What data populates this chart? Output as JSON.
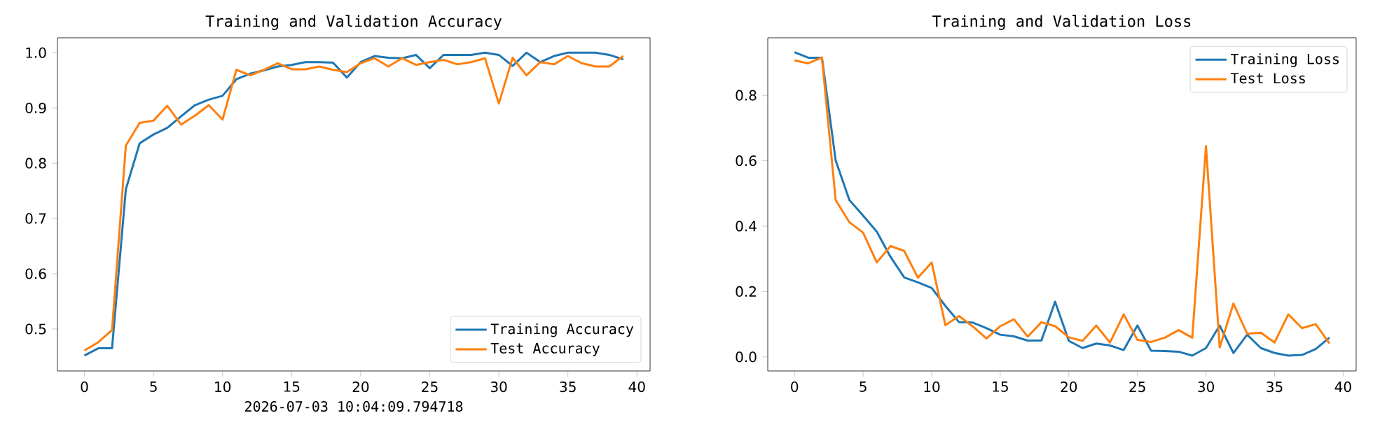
{
  "chart_data": [
    {
      "type": "line",
      "title": "Training and Validation Accuracy",
      "x": [
        0,
        1,
        2,
        3,
        4,
        5,
        6,
        7,
        8,
        9,
        10,
        11,
        12,
        13,
        14,
        15,
        16,
        17,
        18,
        19,
        20,
        21,
        22,
        23,
        24,
        25,
        26,
        27,
        28,
        29,
        30,
        31,
        32,
        33,
        34,
        35,
        36,
        37,
        38,
        39
      ],
      "series": [
        {
          "name": "Training Accuracy",
          "color": "#1f77b4",
          "values": [
            0.452,
            0.465,
            0.465,
            0.753,
            0.836,
            0.852,
            0.864,
            0.885,
            0.905,
            0.915,
            0.922,
            0.952,
            0.962,
            0.968,
            0.975,
            0.978,
            0.983,
            0.983,
            0.982,
            0.955,
            0.983,
            0.994,
            0.991,
            0.99,
            0.996,
            0.972,
            0.996,
            0.996,
            0.996,
            1.0,
            0.996,
            0.976,
            1.0,
            0.983,
            0.994,
            1.0,
            1.0,
            1.0,
            0.996,
            0.988
          ]
        },
        {
          "name": "Test Accuracy",
          "color": "#ff7f0e",
          "values": [
            0.461,
            0.476,
            0.498,
            0.832,
            0.873,
            0.877,
            0.904,
            0.87,
            0.886,
            0.905,
            0.879,
            0.969,
            0.959,
            0.969,
            0.981,
            0.97,
            0.97,
            0.975,
            0.969,
            0.965,
            0.981,
            0.99,
            0.975,
            0.99,
            0.978,
            0.983,
            0.987,
            0.979,
            0.983,
            0.99,
            0.908,
            0.991,
            0.959,
            0.983,
            0.979,
            0.994,
            0.981,
            0.975,
            0.975,
            0.994
          ]
        }
      ],
      "xlim": [
        -1.95,
        40.95
      ],
      "xticks": [
        0,
        5,
        10,
        15,
        20,
        25,
        30,
        35,
        40
      ],
      "ylim": [
        0.424,
        1.027
      ],
      "yticks": [
        {
          "value": 0.5,
          "label": "0.5"
        },
        {
          "value": 0.6,
          "label": "0.6"
        },
        {
          "value": 0.7,
          "label": "0.7"
        },
        {
          "value": 0.8,
          "label": "0.8"
        },
        {
          "value": 0.9,
          "label": "0.9"
        },
        {
          "value": 1.0,
          "label": "1.0"
        }
      ],
      "legend": "bottom right",
      "grid": false,
      "marker": "none",
      "line_style": "solid",
      "annotations": [
        "2026-07-03 10:04:09.794718"
      ]
    },
    {
      "type": "line",
      "title": "Training and Validation Loss",
      "x": [
        0,
        1,
        2,
        3,
        4,
        5,
        6,
        7,
        8,
        9,
        10,
        11,
        12,
        13,
        14,
        15,
        16,
        17,
        18,
        19,
        20,
        21,
        22,
        23,
        24,
        25,
        26,
        27,
        28,
        29,
        30,
        31,
        32,
        33,
        34,
        35,
        36,
        37,
        38,
        39
      ],
      "series": [
        {
          "name": "Training Loss",
          "color": "#1f77b4",
          "values": [
            0.932,
            0.915,
            0.915,
            0.601,
            0.48,
            0.432,
            0.383,
            0.306,
            0.243,
            0.228,
            0.211,
            0.156,
            0.106,
            0.105,
            0.088,
            0.068,
            0.063,
            0.05,
            0.05,
            0.169,
            0.049,
            0.027,
            0.041,
            0.035,
            0.021,
            0.096,
            0.019,
            0.018,
            0.016,
            0.004,
            0.027,
            0.096,
            0.012,
            0.068,
            0.027,
            0.012,
            0.004,
            0.006,
            0.024,
            0.059
          ]
        },
        {
          "name": "Test Loss",
          "color": "#ff7f0e",
          "values": [
            0.907,
            0.898,
            0.916,
            0.48,
            0.412,
            0.38,
            0.289,
            0.339,
            0.324,
            0.242,
            0.289,
            0.097,
            0.125,
            0.093,
            0.056,
            0.094,
            0.115,
            0.062,
            0.106,
            0.094,
            0.06,
            0.049,
            0.096,
            0.044,
            0.13,
            0.052,
            0.046,
            0.059,
            0.082,
            0.059,
            0.645,
            0.029,
            0.163,
            0.071,
            0.074,
            0.044,
            0.13,
            0.088,
            0.1,
            0.041
          ]
        }
      ],
      "xlim": [
        -1.95,
        40.95
      ],
      "xticks": [
        0,
        5,
        10,
        15,
        20,
        25,
        30,
        35,
        40
      ],
      "ylim": [
        -0.043,
        0.976
      ],
      "yticks": [
        {
          "value": 0.0,
          "label": "0.0"
        },
        {
          "value": 0.2,
          "label": "0.2"
        },
        {
          "value": 0.4,
          "label": "0.4"
        },
        {
          "value": 0.6,
          "label": "0.6"
        },
        {
          "value": 0.8,
          "label": "0.8"
        }
      ],
      "legend": "top right",
      "grid": false,
      "marker": "none",
      "line_style": "solid"
    }
  ]
}
